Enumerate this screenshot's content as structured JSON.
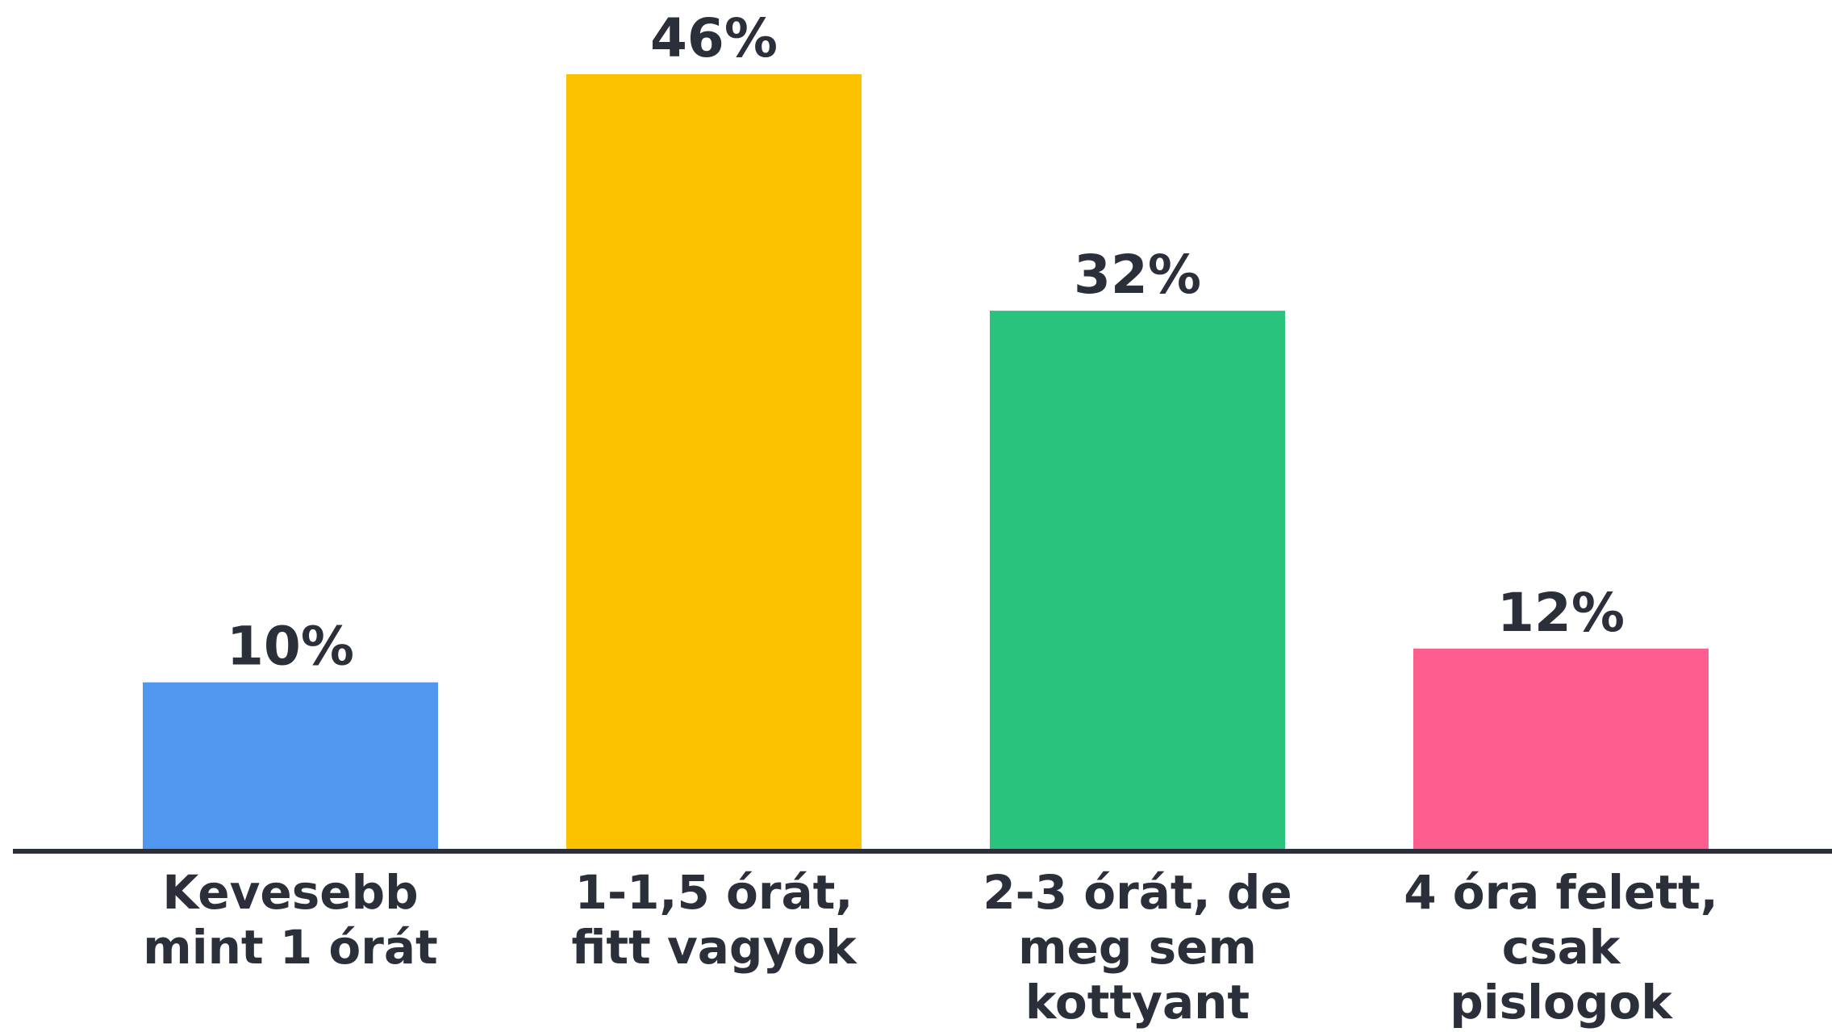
{
  "chart_data": {
    "type": "bar",
    "categories": [
      [
        "Kevesebb",
        "mint 1 órát"
      ],
      [
        "1-1,5 órát,",
        "fitt vagyok"
      ],
      [
        "2-3 órát, de",
        "meg sem",
        "kottyant"
      ],
      [
        "4 óra felett,",
        "csak",
        "pislogok"
      ]
    ],
    "values": [
      10,
      46,
      32,
      12
    ],
    "value_labels": [
      "10%",
      "46%",
      "32%",
      "12%"
    ],
    "colors": [
      "#4f97ef",
      "#fcc200",
      "#2ac37e",
      "#fe5d8f"
    ],
    "axis_color": "#2b2f3a",
    "title": "",
    "xlabel": "",
    "ylabel": "",
    "ylim": [
      0,
      46
    ],
    "grid": false,
    "legend": "none"
  }
}
